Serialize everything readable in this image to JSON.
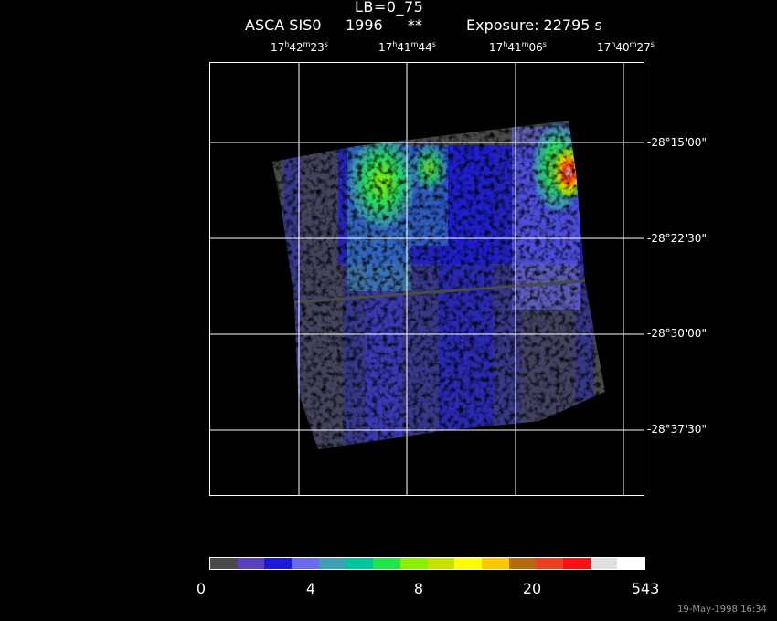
{
  "title": {
    "line1": "LB=0_75",
    "mission": "ASCA SIS0",
    "year": "1996",
    "marker": "**",
    "exposure": "Exposure: 22795 s"
  },
  "ra_ticks": [
    {
      "h": "17",
      "m": "42",
      "s": "23"
    },
    {
      "h": "17",
      "m": "41",
      "s": "44"
    },
    {
      "h": "17",
      "m": "41",
      "s": "06"
    },
    {
      "h": "17",
      "m": "40",
      "s": "27"
    }
  ],
  "dec_ticks": [
    "-28°15'00\"",
    "-28°22'30\"",
    "-28°30'00\"",
    "-28°37'30\""
  ],
  "colorbar": {
    "colors": [
      "#4a4a4a",
      "#5a3fbf",
      "#1a1ad8",
      "#6a6af0",
      "#3e9fb5",
      "#00c6a0",
      "#22e34a",
      "#88f000",
      "#c6e000",
      "#ffff00",
      "#ffc800",
      "#b86a10",
      "#e84020",
      "#ff1010",
      "#e0e0e0",
      "#ffffff"
    ],
    "labels": [
      "0",
      "4",
      "8",
      "20",
      "543"
    ]
  },
  "timestamp": "19-May-1998 16:34"
}
